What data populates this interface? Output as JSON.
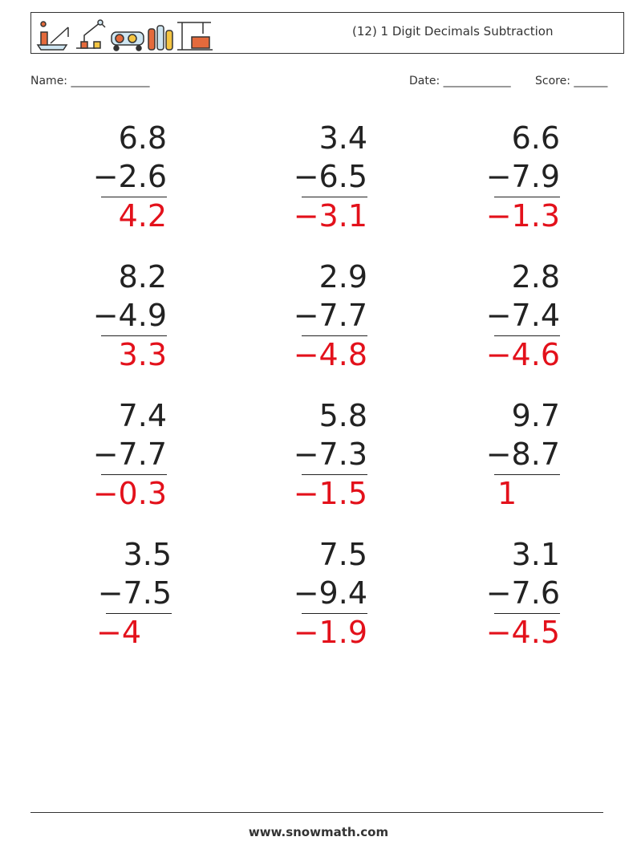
{
  "header": {
    "title": "(12) 1 Digit Decimals Subtraction"
  },
  "fields": {
    "name": "Name: ______________",
    "date": "Date: ____________",
    "score": "Score: ______"
  },
  "problems": [
    {
      "top": "6.8",
      "bottom": "−2.6",
      "answer": "4.2"
    },
    {
      "top": "3.4",
      "bottom": "−6.5",
      "answer": "−3.1"
    },
    {
      "top": "6.6",
      "bottom": "−7.9",
      "answer": "−1.3"
    },
    {
      "top": "8.2",
      "bottom": "−4.9",
      "answer": "3.3"
    },
    {
      "top": "2.9",
      "bottom": "−7.7",
      "answer": "−4.8"
    },
    {
      "top": "2.8",
      "bottom": "−7.4",
      "answer": "−4.6"
    },
    {
      "top": "7.4",
      "bottom": "−7.7",
      "answer": "−0.3"
    },
    {
      "top": "5.8",
      "bottom": "−7.3",
      "answer": "−1.5"
    },
    {
      "top": "9.7",
      "bottom": "−8.7",
      "answer": "1"
    },
    {
      "top": "3.5",
      "bottom": "−7.5",
      "answer": "−4"
    },
    {
      "top": "7.5",
      "bottom": "−9.4",
      "answer": "−1.9"
    },
    {
      "top": "3.1",
      "bottom": "−7.6",
      "answer": "−4.5"
    }
  ],
  "colors": {
    "answer": "#e3111b",
    "text": "#222222"
  },
  "footer": {
    "site": "www.snowmath.com"
  }
}
